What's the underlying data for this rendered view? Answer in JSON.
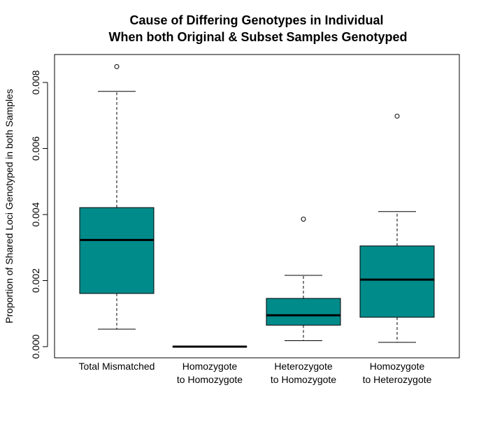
{
  "chart_data": {
    "type": "boxplot",
    "title_lines": [
      "Cause of Differing Genotypes in Individual",
      "When both Original & Subset Samples Genotyped"
    ],
    "xlabel": "",
    "ylabel": "Proportion of Shared Loci Genotyped in both Samples",
    "ylim": [
      0,
      0.0088
    ],
    "yticks": [
      0.0,
      0.002,
      0.004,
      0.006,
      0.008
    ],
    "ytick_labels": [
      "0.000",
      "0.002",
      "0.004",
      "0.006",
      "0.008"
    ],
    "box_color": "#008B8B",
    "categories": [
      {
        "label_lines": [
          "Total Mismatched"
        ],
        "whisker_low": 0.00053,
        "q1": 0.00161,
        "median": 0.00323,
        "q3": 0.00421,
        "whisker_high": 0.00773,
        "outliers": [
          0.00848
        ]
      },
      {
        "label_lines": [
          "Homozygote",
          "to Homozygote"
        ],
        "whisker_low": 0.0,
        "q1": 0.0,
        "median": 0.0,
        "q3": 0.0,
        "whisker_high": 0.0,
        "outliers": []
      },
      {
        "label_lines": [
          "Heterozygote",
          "to Homozygote"
        ],
        "whisker_low": 0.00018,
        "q1": 0.00065,
        "median": 0.00095,
        "q3": 0.00146,
        "whisker_high": 0.00216,
        "outliers": [
          0.00386
        ]
      },
      {
        "label_lines": [
          "Homozygote",
          "to Heterozygote"
        ],
        "whisker_low": 0.00013,
        "q1": 0.00089,
        "median": 0.00203,
        "q3": 0.00305,
        "whisker_high": 0.00409,
        "outliers": [
          0.00698
        ]
      }
    ]
  }
}
